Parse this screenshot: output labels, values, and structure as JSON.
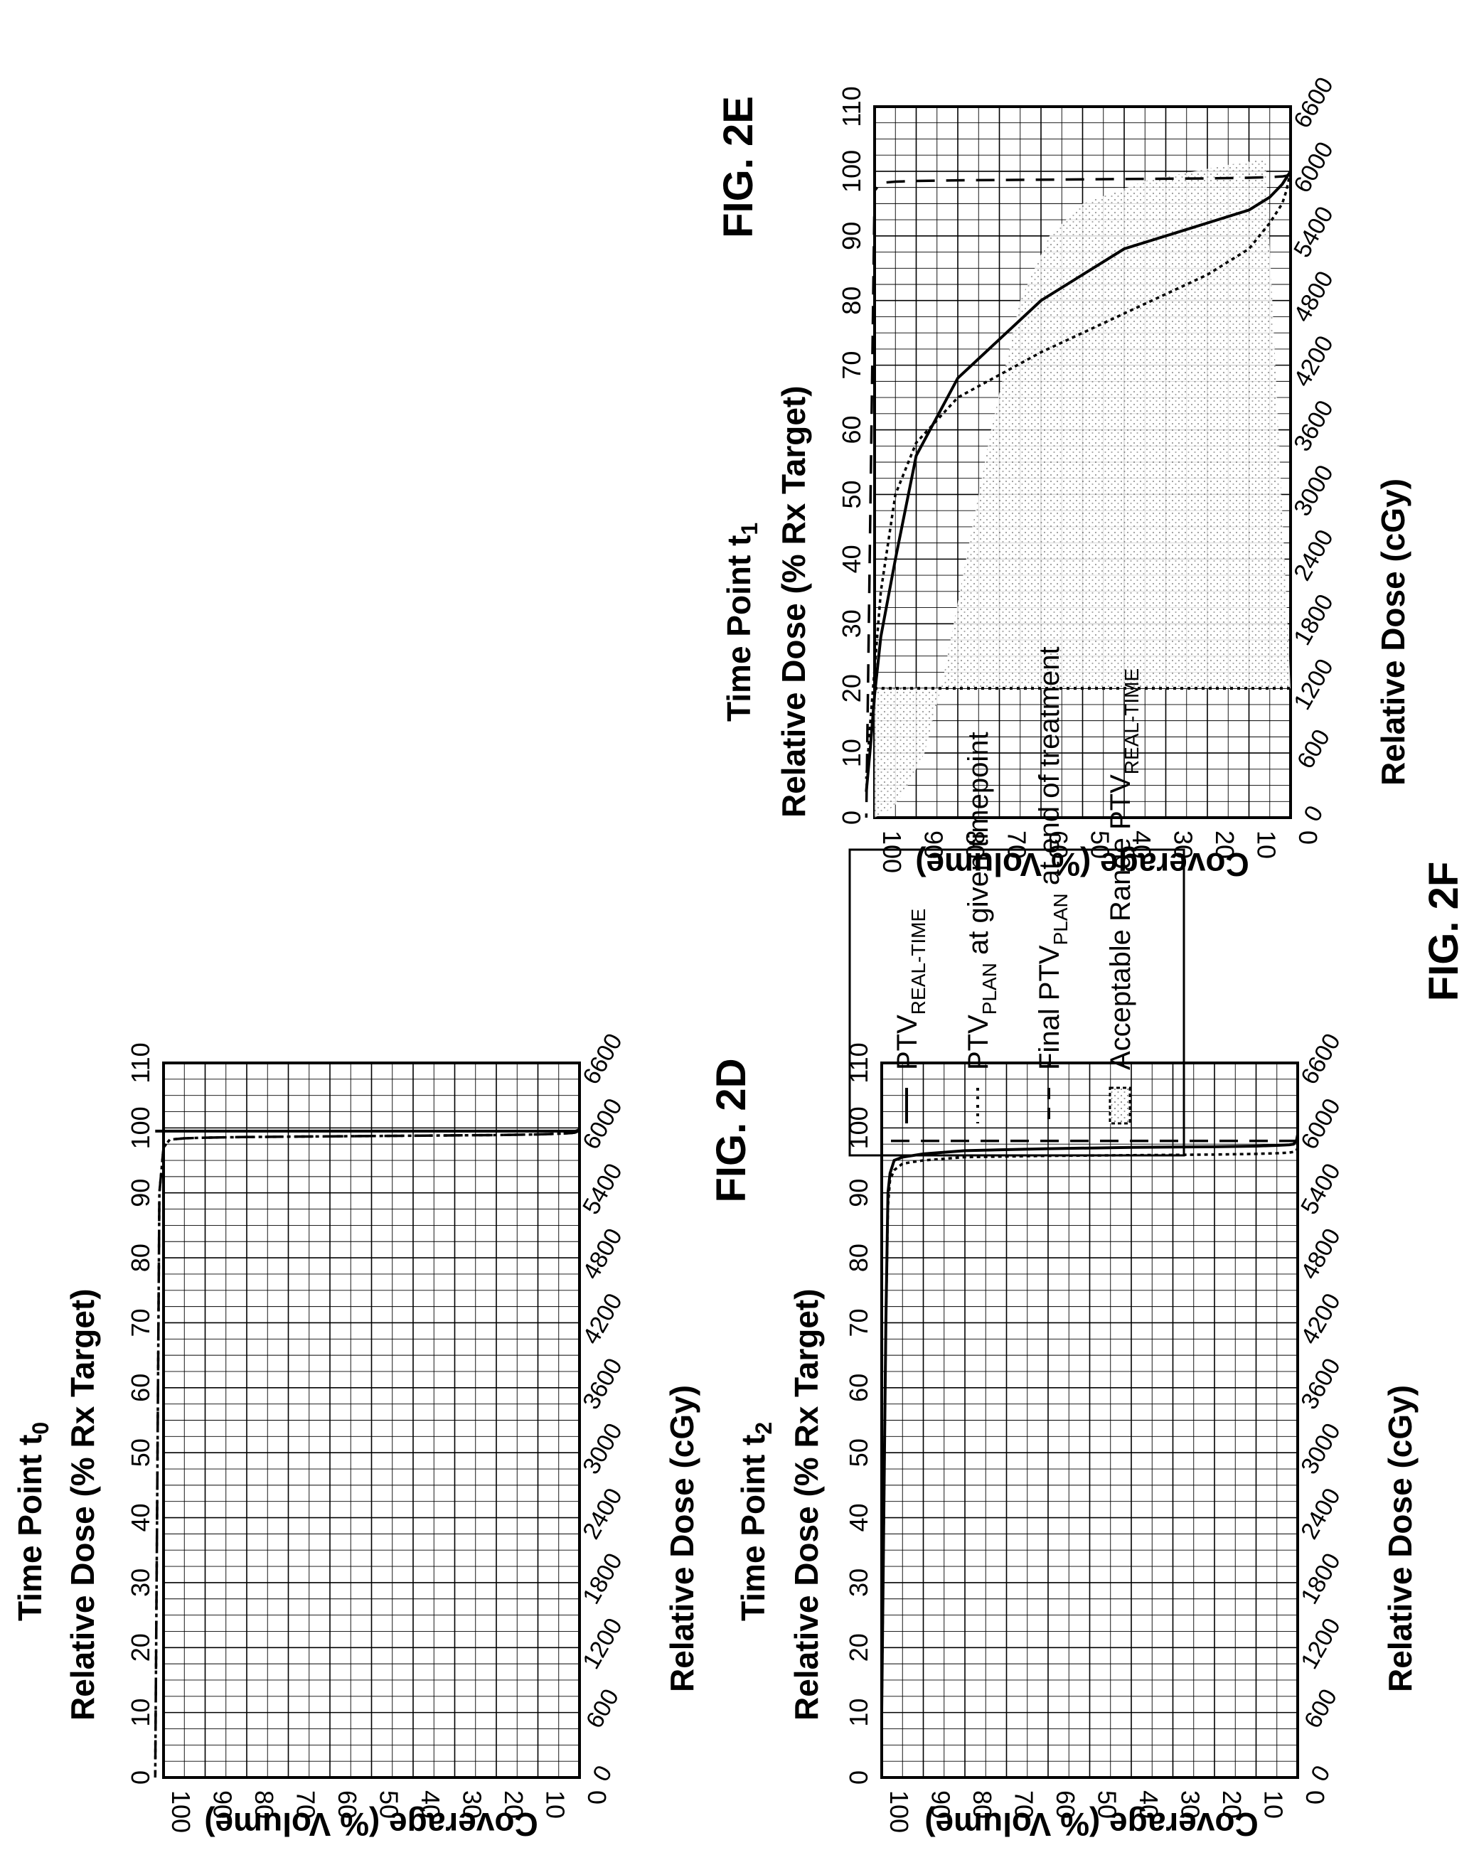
{
  "chart_data": [
    {
      "id": "2D",
      "type": "line",
      "title_line1": "Time Point t",
      "title_sub": "0",
      "xlabel": "Relative Dose (% Rx Target)",
      "x2label": "Relative Dose (cGy)",
      "ylabel": "Coverage (% Volume)",
      "figure_label": "FIG. 2D",
      "xlim": [
        0,
        110
      ],
      "ylim": [
        0,
        100
      ],
      "x_ticks": [
        "0",
        "10",
        "20",
        "30",
        "40",
        "50",
        "60",
        "70",
        "80",
        "90",
        "100",
        "110"
      ],
      "x2_ticks": [
        "0",
        "600",
        "1200",
        "1800",
        "2400",
        "3000",
        "3600",
        "4200",
        "4800",
        "5400",
        "6000",
        "6600"
      ],
      "y_ticks": [
        "0",
        "10",
        "20",
        "30",
        "40",
        "50",
        "60",
        "70",
        "80",
        "90",
        "100"
      ],
      "grid": true,
      "series": [
        {
          "style": "dash",
          "x": [
            0,
            0.3,
            1,
            2,
            5,
            10,
            20,
            40,
            60,
            80,
            90,
            95,
            98.5,
            100,
            101,
            102
          ],
          "y": [
            100,
            99.5,
            99.3,
            99.2,
            99.1,
            99,
            98.9,
            98.8,
            98.7,
            98.6,
            98.5,
            98.4,
            98.2,
            97,
            90,
            0
          ]
        },
        {
          "style": "dot",
          "x": [
            0,
            0.3,
            1,
            2,
            5,
            10,
            20,
            40,
            60,
            80,
            90,
            95,
            98.5,
            100,
            101,
            102
          ],
          "y": [
            100,
            99.5,
            99.3,
            99.2,
            99.1,
            99,
            98.9,
            98.8,
            98.7,
            98.6,
            98.5,
            98.4,
            98.2,
            97,
            90,
            0
          ]
        },
        {
          "style": "solid",
          "x": [
            0,
            0.2,
            0.5,
            1,
            5,
            10,
            20,
            40,
            60,
            80,
            95,
            98,
            100,
            102
          ],
          "y": [
            100,
            99.7,
            99.6,
            99.5,
            99.5,
            99.5,
            99.5,
            99.5,
            99.5,
            99.5,
            99.5,
            99.5,
            99.5,
            99.5
          ]
        }
      ]
    },
    {
      "id": "2E",
      "type": "line",
      "title_line1": "Time Point t",
      "title_sub": "1",
      "xlabel": "Relative Dose (% Rx Target)",
      "x2label": "Relative Dose (cGy)",
      "ylabel": "Coverage (% Volume)",
      "figure_label": "FIG. 2E",
      "xlim": [
        0,
        110
      ],
      "ylim": [
        0,
        100
      ],
      "x_ticks": [
        "0",
        "10",
        "20",
        "30",
        "40",
        "50",
        "60",
        "70",
        "80",
        "90",
        "100",
        "110"
      ],
      "x2_ticks": [
        "0",
        "600",
        "1200",
        "1800",
        "2400",
        "3000",
        "3600",
        "4200",
        "4800",
        "5400",
        "6000",
        "6600"
      ],
      "y_ticks": [
        "0",
        "10",
        "20",
        "30",
        "40",
        "50",
        "60",
        "70",
        "80",
        "90",
        "100"
      ],
      "grid": true,
      "series": [
        {
          "style": "solid",
          "x": [
            0,
            0.5,
            1,
            2,
            5,
            10,
            20,
            40,
            60,
            80,
            90,
            95,
            98.5,
            100,
            101,
            102
          ],
          "y": [
            100,
            99.5,
            99,
            98,
            96,
            94,
            92,
            88,
            80,
            68,
            56,
            40,
            28,
            19,
            11,
            4
          ]
        },
        {
          "style": "dot",
          "x": [
            0,
            0.5,
            1,
            2,
            5,
            10,
            20,
            40,
            60,
            80,
            90,
            95,
            98.5,
            100,
            101,
            102
          ],
          "y": [
            100,
            98.5,
            97,
            95,
            92,
            88,
            84,
            78,
            72,
            65,
            58,
            50,
            35,
            23,
            15,
            6
          ]
        },
        {
          "style": "dash",
          "x": [
            0,
            0.3,
            1,
            2,
            5,
            10,
            20,
            40,
            60,
            80,
            90,
            95,
            98.5,
            100,
            102
          ],
          "y": [
            100,
            99.5,
            99.3,
            99.2,
            99.1,
            99,
            98.9,
            98.8,
            98.7,
            98.6,
            98.5,
            98.4,
            98.2,
            97,
            0
          ]
        }
      ],
      "acceptable_range_lower": {
        "x": [
          0,
          2,
          5,
          10,
          30,
          60,
          80,
          92,
          97,
          100,
          100
        ],
        "y": [
          20,
          20,
          20,
          20,
          20,
          20,
          20,
          20,
          20,
          20,
          20
        ]
      }
    },
    {
      "id": "2F",
      "type": "line",
      "title_line1": "Time Point t",
      "title_sub": "2",
      "xlabel": "Relative Dose (% Rx Target)",
      "x2label": "Relative Dose (cGy)",
      "ylabel": "Coverage (% Volume)",
      "figure_label": "FIG. 2F",
      "xlim": [
        0,
        110
      ],
      "ylim": [
        0,
        100
      ],
      "x_ticks": [
        "0",
        "10",
        "20",
        "30",
        "40",
        "50",
        "60",
        "70",
        "80",
        "90",
        "100",
        "110"
      ],
      "x2_ticks": [
        "0",
        "600",
        "1200",
        "1800",
        "2400",
        "3000",
        "3600",
        "4200",
        "4800",
        "5400",
        "6000",
        "6600"
      ],
      "y_ticks": [
        "0",
        "10",
        "20",
        "30",
        "40",
        "50",
        "60",
        "70",
        "80",
        "90",
        "100"
      ],
      "grid": true,
      "series": [
        {
          "style": "solid",
          "x": [
            0,
            0.3,
            1,
            2,
            5,
            10,
            20,
            40,
            60,
            80,
            90,
            95,
            97,
            98,
            98.5,
            99,
            100
          ],
          "y": [
            99,
            98,
            97.5,
            97.4,
            97.3,
            97.2,
            97.1,
            97,
            96.8,
            96.5,
            96,
            95.5,
            95,
            93,
            90,
            70,
            10
          ]
        },
        {
          "style": "dot",
          "x": [
            0,
            0.3,
            1,
            2,
            5,
            10,
            20,
            40,
            60,
            80,
            90,
            95,
            97,
            98,
            98.5,
            99,
            100
          ],
          "y": [
            97,
            96.5,
            96.3,
            96.2,
            96.1,
            96,
            95.9,
            95.8,
            95.7,
            95.5,
            95,
            94.5,
            93.5,
            92,
            88,
            70,
            10
          ]
        },
        {
          "style": "dash",
          "x": [
            0,
            1,
            5,
            10,
            20,
            40,
            60,
            80,
            95,
            98,
            100
          ],
          "y": [
            98,
            98,
            98,
            98,
            98,
            98,
            98,
            98,
            98,
            98,
            98
          ]
        }
      ]
    }
  ],
  "legend": {
    "items": [
      {
        "style": "solid",
        "text": "PTV",
        "sub": "REAL-TIME",
        "suffix": ""
      },
      {
        "style": "dot",
        "text": "PTV",
        "sub": "PLAN",
        "suffix": " at given timepoint"
      },
      {
        "style": "dash",
        "text": "Final PTV",
        "sub": "PLAN",
        "suffix": " at end of treatment"
      },
      {
        "style": "fill",
        "text": "Acceptable Range PTV",
        "sub": "REAL-TIME",
        "suffix": ""
      }
    ]
  }
}
